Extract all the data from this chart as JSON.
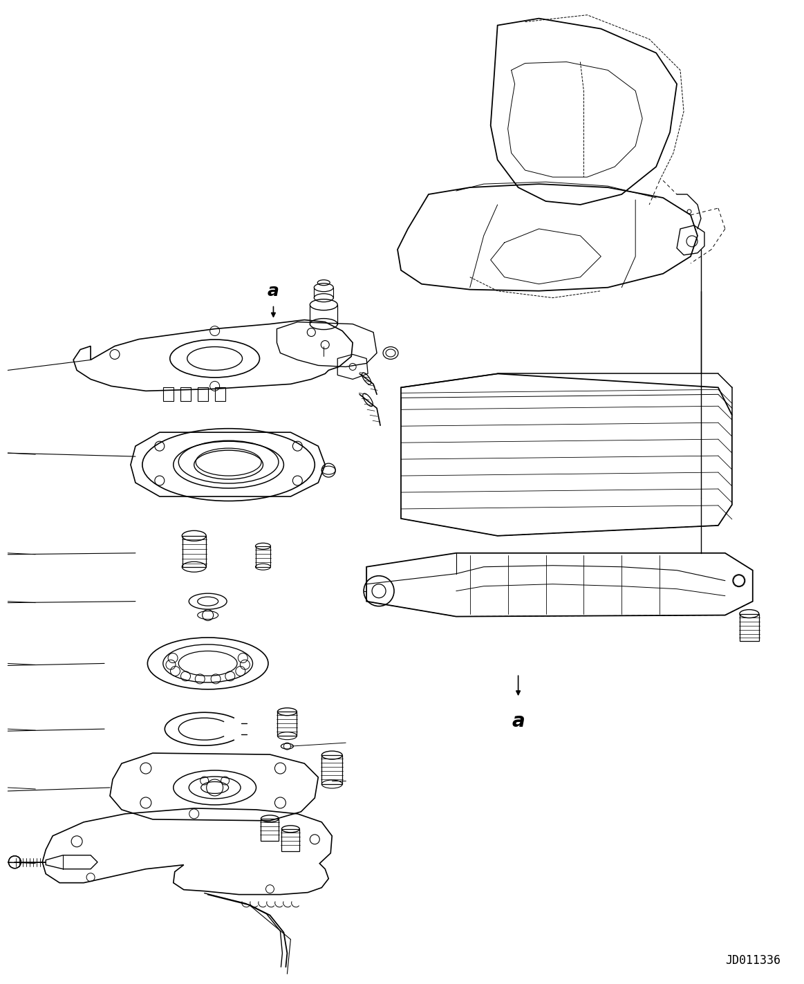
{
  "figure_width": 11.63,
  "figure_height": 14.23,
  "dpi": 100,
  "background_color": "#ffffff",
  "line_color": "#000000",
  "drawing_code": "JD011336"
}
